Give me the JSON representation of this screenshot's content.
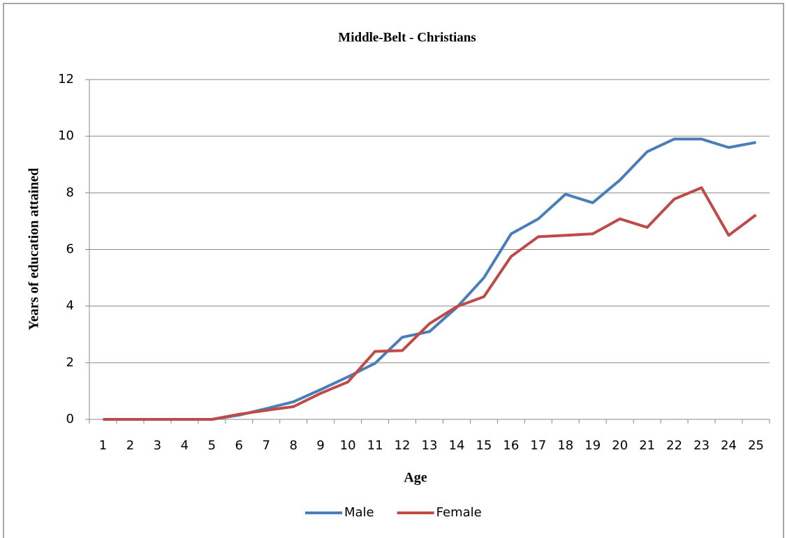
{
  "chart_data": {
    "type": "line",
    "title": "Middle-Belt - Christians",
    "x_label": "Age",
    "y_label": "Years of education attained",
    "categories": [
      "1",
      "2",
      "3",
      "4",
      "5",
      "6",
      "7",
      "8",
      "9",
      "10",
      "11",
      "12",
      "13",
      "14",
      "15",
      "16",
      "17",
      "18",
      "19",
      "20",
      "21",
      "22",
      "23",
      "24",
      "25"
    ],
    "series": [
      {
        "name": "Male",
        "color": "#4a7ebb",
        "values": [
          0,
          0,
          0,
          0,
          0,
          0.15,
          0.38,
          0.62,
          1.05,
          1.5,
          1.98,
          2.9,
          3.1,
          3.95,
          5.0,
          6.55,
          7.08,
          7.95,
          7.65,
          8.45,
          9.45,
          9.9,
          9.9,
          9.6,
          9.78
        ]
      },
      {
        "name": "Female",
        "color": "#be4b48",
        "values": [
          0,
          0,
          0,
          0,
          0,
          0.18,
          0.32,
          0.45,
          0.92,
          1.32,
          2.4,
          2.43,
          3.38,
          3.98,
          4.33,
          5.75,
          6.45,
          6.5,
          6.55,
          7.08,
          6.78,
          7.78,
          8.18,
          6.5,
          7.22
        ]
      }
    ],
    "ylim": [
      0,
      12
    ],
    "yticks": [
      0,
      2,
      4,
      6,
      8,
      10,
      12
    ],
    "grid": true,
    "legend": "bottom"
  }
}
